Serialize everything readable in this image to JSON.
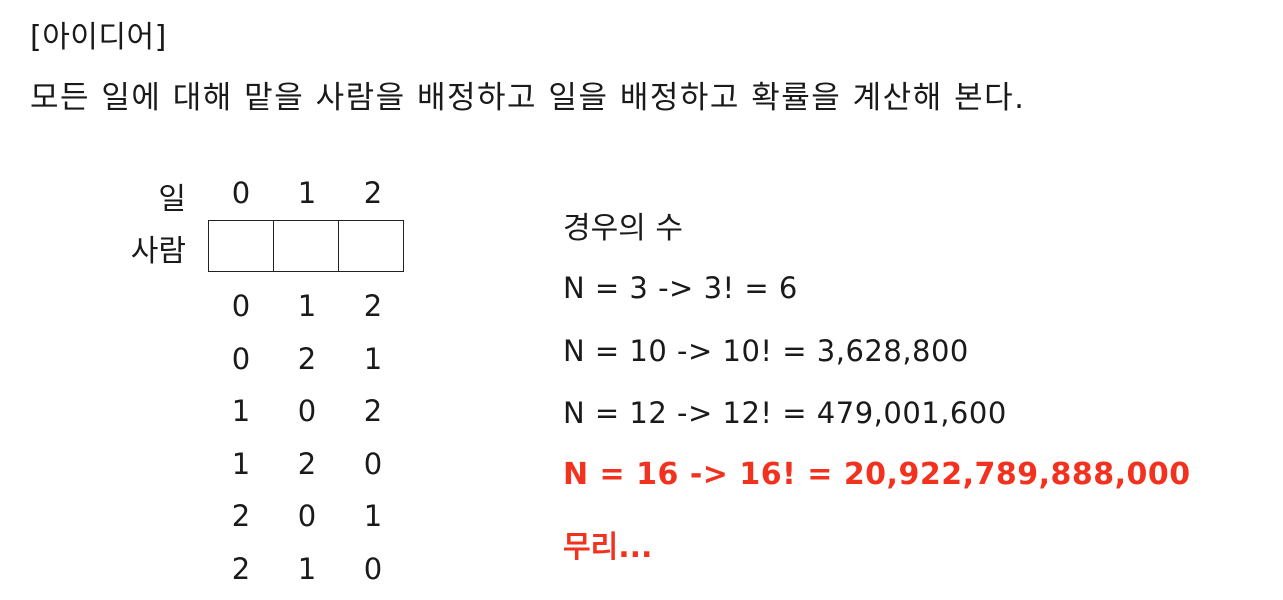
{
  "header": {
    "section_tag": "[아이디어]",
    "idea_text": "모든 일에 대해 맡을 사람을 배정하고 일을 배정하고 확률을 계산해 본다."
  },
  "diagram": {
    "row_label_work": "일",
    "row_label_person": "사람",
    "columns": [
      "0",
      "1",
      "2"
    ],
    "permutations": [
      [
        "0",
        "1",
        "2"
      ],
      [
        "0",
        "2",
        "1"
      ],
      [
        "1",
        "0",
        "2"
      ],
      [
        "1",
        "2",
        "0"
      ],
      [
        "2",
        "0",
        "1"
      ],
      [
        "2",
        "1",
        "0"
      ]
    ]
  },
  "cases": {
    "title": "경우의 수",
    "lines": [
      "N = 3 -> 3! = 6",
      "N = 10 -> 10! = 3,628,800",
      "N = 12 -> 12! = 479,001,600",
      "N = 16 -> 16! = 20,922,789,888,000"
    ],
    "conclusion": "무리...",
    "highlight_color": "#f2321e"
  }
}
